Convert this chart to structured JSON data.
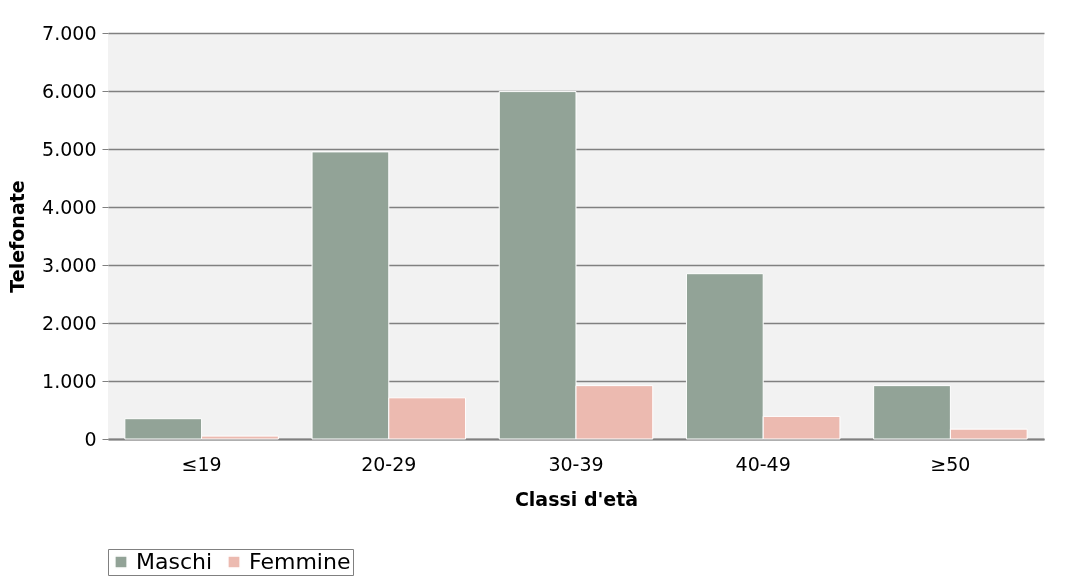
{
  "chart_data": {
    "type": "bar",
    "xlabel": "Classi d'età",
    "ylabel": "Telefonate",
    "categories": [
      "≤19",
      "20-29",
      "30-39",
      "40-49",
      "≥50"
    ],
    "series": [
      {
        "name": "Maschi",
        "color": "#92a397",
        "values": [
          350,
          4950,
          5990,
          2850,
          920
        ]
      },
      {
        "name": "Femmine",
        "color": "#ecbab0",
        "values": [
          50,
          710,
          920,
          390,
          170
        ]
      }
    ],
    "ylim": [
      0,
      7000
    ],
    "yticks": [
      0,
      {
        "value": 1000,
        "label": "1.000"
      },
      {
        "value": 2000,
        "label": "2.000"
      },
      {
        "value": 3000,
        "label": "3.000"
      },
      {
        "value": 4000,
        "label": "4.000"
      },
      {
        "value": 5000,
        "label": "5.000"
      },
      {
        "value": 6000,
        "label": "6.000"
      },
      {
        "value": 7000,
        "label": "7.000"
      }
    ],
    "grid": "y",
    "legend": "bottom"
  }
}
